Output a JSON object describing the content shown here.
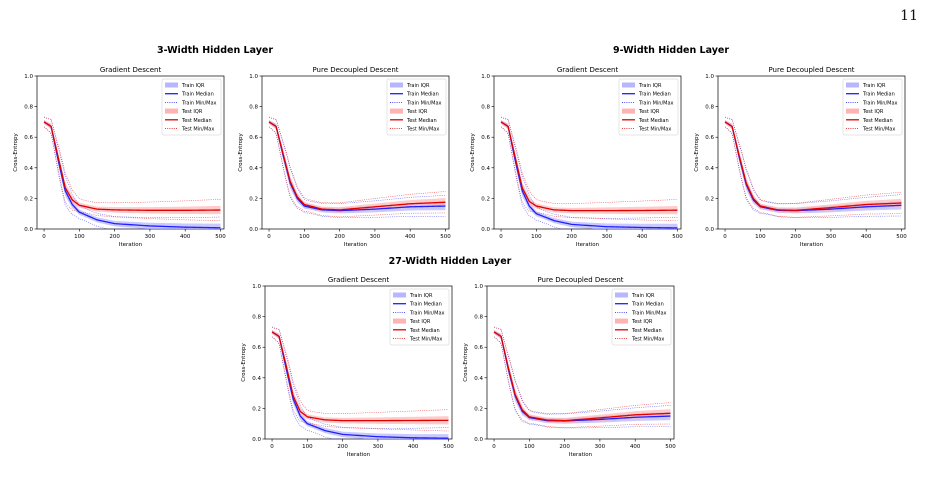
{
  "page_number": "11",
  "legend_labels": [
    "Train IQR",
    "Train Median",
    "Train Min/Max",
    "Test IQR",
    "Test Median",
    "Test Min/Max"
  ],
  "colors": {
    "train": "#1f1fff",
    "train_band": "#b7b7ff",
    "test": "#e00000",
    "test_band": "#ffb3b3"
  },
  "groups": [
    {
      "id": "g3",
      "title": "3-Width Hidden Layer"
    },
    {
      "id": "g9",
      "title": "9-Width Hidden Layer"
    },
    {
      "id": "g27",
      "title": "27-Width Hidden Layer"
    }
  ],
  "chart_data": [
    {
      "group": "3-Width Hidden Layer",
      "type": "line",
      "title": "Gradient Descent",
      "xlabel": "Iteration",
      "ylabel": "Cross-Entropy",
      "xlim": [
        -20,
        510
      ],
      "ylim": [
        0,
        1.0
      ],
      "xticks": [
        0,
        100,
        200,
        300,
        400,
        500
      ],
      "yticks": [
        0.0,
        0.2,
        0.4,
        0.6,
        0.8,
        1.0
      ],
      "legend": "top-right",
      "series": [
        {
          "name": "Train Median",
          "x": [
            0,
            20,
            40,
            60,
            80,
            100,
            150,
            200,
            300,
            400,
            500
          ],
          "y": [
            0.7,
            0.67,
            0.45,
            0.25,
            0.16,
            0.11,
            0.06,
            0.035,
            0.02,
            0.012,
            0.008
          ]
        },
        {
          "name": "Test Median",
          "x": [
            0,
            20,
            40,
            60,
            80,
            100,
            150,
            200,
            300,
            400,
            500
          ],
          "y": [
            0.7,
            0.67,
            0.47,
            0.27,
            0.19,
            0.155,
            0.13,
            0.125,
            0.122,
            0.122,
            0.124
          ]
        }
      ]
    },
    {
      "group": "3-Width Hidden Layer",
      "type": "line",
      "title": "Pure Decoupled Descent",
      "xlabel": "Iteration",
      "ylabel": "Cross-Entropy",
      "xlim": [
        -20,
        510
      ],
      "ylim": [
        0,
        1.0
      ],
      "xticks": [
        0,
        100,
        200,
        300,
        400,
        500
      ],
      "yticks": [
        0.0,
        0.2,
        0.4,
        0.6,
        0.8,
        1.0
      ],
      "legend": "top-right",
      "series": [
        {
          "name": "Train Median",
          "x": [
            0,
            20,
            40,
            60,
            80,
            100,
            150,
            200,
            300,
            400,
            500
          ],
          "y": [
            0.7,
            0.67,
            0.48,
            0.3,
            0.2,
            0.15,
            0.125,
            0.12,
            0.13,
            0.145,
            0.15
          ]
        },
        {
          "name": "Test Median",
          "x": [
            0,
            20,
            40,
            60,
            80,
            100,
            150,
            200,
            300,
            400,
            500
          ],
          "y": [
            0.7,
            0.67,
            0.49,
            0.31,
            0.21,
            0.16,
            0.13,
            0.125,
            0.145,
            0.165,
            0.175
          ]
        }
      ]
    },
    {
      "group": "9-Width Hidden Layer",
      "type": "line",
      "title": "Gradient Descent",
      "xlabel": "Iteration",
      "ylabel": "Cross-Entropy",
      "xlim": [
        -20,
        510
      ],
      "ylim": [
        0,
        1.0
      ],
      "xticks": [
        0,
        100,
        200,
        300,
        400,
        500
      ],
      "yticks": [
        0.0,
        0.2,
        0.4,
        0.6,
        0.8,
        1.0
      ],
      "legend": "top-right",
      "series": [
        {
          "name": "Train Median",
          "x": [
            0,
            20,
            40,
            60,
            80,
            100,
            150,
            200,
            300,
            400,
            500
          ],
          "y": [
            0.7,
            0.67,
            0.45,
            0.25,
            0.15,
            0.1,
            0.055,
            0.03,
            0.015,
            0.01,
            0.007
          ]
        },
        {
          "name": "Test Median",
          "x": [
            0,
            20,
            40,
            60,
            80,
            100,
            150,
            200,
            300,
            400,
            500
          ],
          "y": [
            0.7,
            0.67,
            0.47,
            0.27,
            0.18,
            0.15,
            0.125,
            0.12,
            0.12,
            0.121,
            0.123
          ]
        }
      ]
    },
    {
      "group": "9-Width Hidden Layer",
      "type": "line",
      "title": "Pure Decoupled Descent",
      "xlabel": "Iteration",
      "ylabel": "Cross-Entropy",
      "xlim": [
        -20,
        510
      ],
      "ylim": [
        0,
        1.0
      ],
      "xticks": [
        0,
        100,
        200,
        300,
        400,
        500
      ],
      "yticks": [
        0.0,
        0.2,
        0.4,
        0.6,
        0.8,
        1.0
      ],
      "legend": "top-right",
      "series": [
        {
          "name": "Train Median",
          "x": [
            0,
            20,
            40,
            60,
            80,
            100,
            150,
            200,
            300,
            400,
            500
          ],
          "y": [
            0.7,
            0.67,
            0.47,
            0.29,
            0.19,
            0.145,
            0.122,
            0.12,
            0.13,
            0.145,
            0.155
          ]
        },
        {
          "name": "Test Median",
          "x": [
            0,
            20,
            40,
            60,
            80,
            100,
            150,
            200,
            300,
            400,
            500
          ],
          "y": [
            0.7,
            0.67,
            0.48,
            0.3,
            0.2,
            0.15,
            0.125,
            0.122,
            0.14,
            0.16,
            0.17
          ]
        }
      ]
    },
    {
      "group": "27-Width Hidden Layer",
      "type": "line",
      "title": "Gradient Descent",
      "xlabel": "Iteration",
      "ylabel": "Cross-Entropy",
      "xlim": [
        -20,
        510
      ],
      "ylim": [
        0,
        1.0
      ],
      "xticks": [
        0,
        100,
        200,
        300,
        400,
        500
      ],
      "yticks": [
        0.0,
        0.2,
        0.4,
        0.6,
        0.8,
        1.0
      ],
      "legend": "top-right",
      "series": [
        {
          "name": "Train Median",
          "x": [
            0,
            20,
            40,
            60,
            80,
            100,
            150,
            200,
            300,
            400,
            500
          ],
          "y": [
            0.7,
            0.67,
            0.46,
            0.26,
            0.15,
            0.1,
            0.055,
            0.03,
            0.015,
            0.008,
            0.005
          ]
        },
        {
          "name": "Test Median",
          "x": [
            0,
            20,
            40,
            60,
            80,
            100,
            150,
            200,
            300,
            400,
            500
          ],
          "y": [
            0.7,
            0.67,
            0.48,
            0.28,
            0.18,
            0.145,
            0.125,
            0.12,
            0.12,
            0.121,
            0.122
          ]
        }
      ]
    },
    {
      "group": "27-Width Hidden Layer",
      "type": "line",
      "title": "Pure Decoupled Descent",
      "xlabel": "Iteration",
      "ylabel": "Cross-Entropy",
      "xlim": [
        -20,
        510
      ],
      "ylim": [
        0,
        1.0
      ],
      "xticks": [
        0,
        100,
        200,
        300,
        400,
        500
      ],
      "yticks": [
        0.0,
        0.2,
        0.4,
        0.6,
        0.8,
        1.0
      ],
      "legend": "top-right",
      "series": [
        {
          "name": "Train Median",
          "x": [
            0,
            20,
            40,
            60,
            80,
            100,
            150,
            200,
            300,
            400,
            500
          ],
          "y": [
            0.7,
            0.67,
            0.46,
            0.28,
            0.18,
            0.14,
            0.12,
            0.118,
            0.128,
            0.142,
            0.15
          ]
        },
        {
          "name": "Test Median",
          "x": [
            0,
            20,
            40,
            60,
            80,
            100,
            150,
            200,
            300,
            400,
            500
          ],
          "y": [
            0.7,
            0.67,
            0.47,
            0.29,
            0.19,
            0.145,
            0.124,
            0.12,
            0.138,
            0.158,
            0.168
          ]
        }
      ]
    }
  ]
}
